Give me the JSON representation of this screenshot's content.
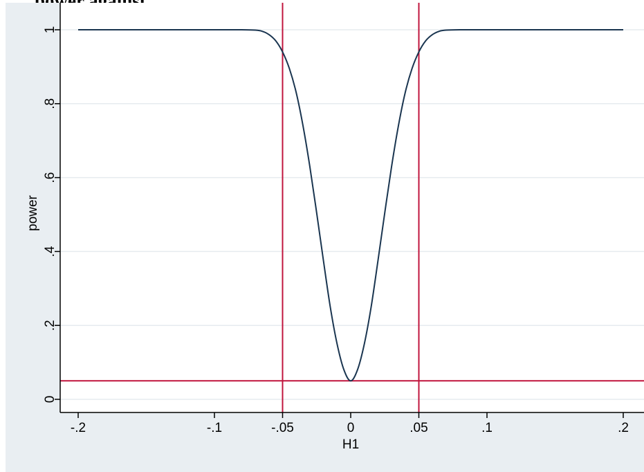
{
  "figure": {
    "title": "power against"
  },
  "chart_data": {
    "type": "line",
    "title": "",
    "xlabel": "H1",
    "ylabel": "power",
    "xlim": [
      -0.2,
      0.2
    ],
    "ylim": [
      0,
      1
    ],
    "x_ticks": [
      -0.2,
      -0.1,
      -0.05,
      0,
      0.05,
      0.1,
      0.2
    ],
    "x_tick_labels": [
      "-.2",
      "-.1",
      "-.05",
      "0",
      ".05",
      ".1",
      ".2"
    ],
    "y_ticks": [
      0,
      0.2,
      0.4,
      0.6,
      0.8,
      1
    ],
    "y_tick_labels": [
      "0",
      ".2",
      ".4",
      ".6",
      ".8",
      "1"
    ],
    "grid": "horizontal",
    "series": [
      {
        "color": "#1a3550",
        "x": [
          -0.2,
          -0.1,
          -0.08,
          -0.07,
          -0.065,
          -0.06,
          -0.055,
          -0.05,
          -0.045,
          -0.04,
          -0.035,
          -0.03,
          -0.025,
          -0.02,
          -0.015,
          -0.01,
          -0.005,
          0,
          0.005,
          0.01,
          0.015,
          0.02,
          0.025,
          0.03,
          0.035,
          0.04,
          0.045,
          0.05,
          0.055,
          0.06,
          0.065,
          0.07,
          0.08,
          0.1,
          0.2
        ],
        "y": [
          1,
          1,
          1,
          0.999,
          0.996,
          0.987,
          0.97,
          0.94,
          0.895,
          0.83,
          0.74,
          0.63,
          0.505,
          0.375,
          0.25,
          0.15,
          0.08,
          0.05,
          0.08,
          0.15,
          0.25,
          0.375,
          0.505,
          0.63,
          0.74,
          0.83,
          0.895,
          0.94,
          0.97,
          0.987,
          0.996,
          0.999,
          1,
          1,
          1
        ]
      }
    ],
    "reference_lines": {
      "color": "#c0143c",
      "vertical_x": [
        -0.05,
        0.05
      ],
      "horizontal_y": [
        0.05
      ]
    },
    "colors": {
      "background": "#e9eef2",
      "plot_area": "#ffffff",
      "grid": "#e6ebef"
    }
  }
}
